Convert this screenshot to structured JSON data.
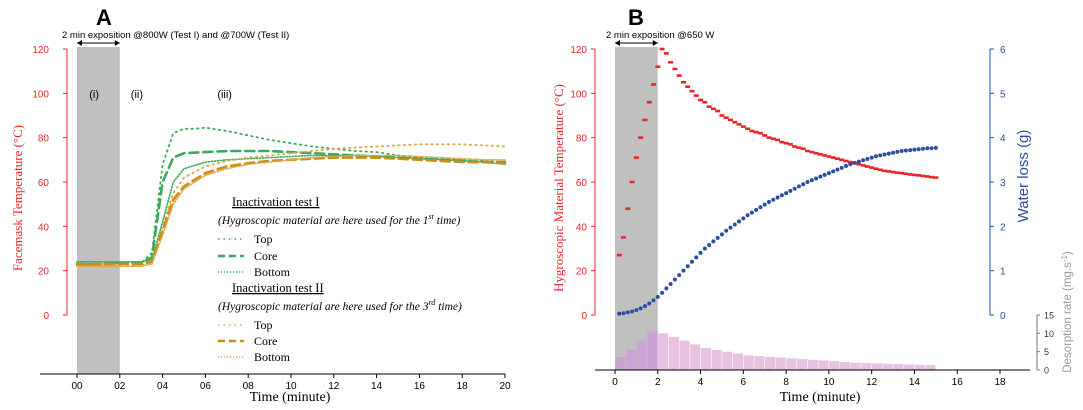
{
  "panels": {
    "a": {
      "letter": "A",
      "exposition_note": "2 min exposition @800W (Test I) and @700W (Test II)"
    },
    "b": {
      "letter": "B",
      "exposition_note": "2 min exposition @650 W"
    }
  },
  "colors": {
    "red": "#e8262a",
    "blue": "#2f4da0",
    "green": "#3aaa5e",
    "gold": "#c98f15",
    "gold_light": "#e0a64a",
    "shade": "#c0c0c0",
    "pink": "#e4b8dc",
    "purple": "#c9a0d6"
  },
  "chart_data": [
    {
      "type": "line",
      "xlabel": "Time (minute)",
      "ylabel": "Facemask Temperature (°C)",
      "xlim": [
        0,
        20
      ],
      "ylim": [
        0,
        120
      ],
      "x_ticks": [
        "00",
        "02",
        "04",
        "06",
        "08",
        "10",
        "12",
        "14",
        "16",
        "18",
        "20"
      ],
      "y_ticks": [
        "0",
        "20",
        "40",
        "60",
        "80",
        "100",
        "120"
      ],
      "shaded_region_x": [
        0,
        2
      ],
      "phase_labels": [
        {
          "text": "(i)",
          "x": 0.8
        },
        {
          "text": "(ii)",
          "x": 2.8
        },
        {
          "text": "(iii)",
          "x": 6.9
        }
      ],
      "legend": {
        "group1_title": "Inactivation test I",
        "group1_note": "(Hygroscopic material are here used for the 1",
        "group1_sup": "st",
        "group1_note_end": " time)",
        "group2_title": "Inactivation test II",
        "group2_note": "(Hygroscopic material are here used for the 3",
        "group2_sup": "rd",
        "group2_note_end": " time)",
        "labels": [
          "Top",
          "Core",
          "Bottom",
          "Top",
          "Core",
          "Bottom"
        ]
      },
      "series": [
        {
          "name": "Top",
          "group": "Inactivation test I",
          "color": "#3aaa5e",
          "style": "dotted",
          "x": [
            0,
            1,
            2,
            3,
            3.5,
            4,
            4.5,
            5,
            5.5,
            6,
            7,
            8,
            9,
            10,
            11,
            12,
            13,
            14,
            15,
            16,
            17,
            18,
            19,
            20
          ],
          "y": [
            23,
            23,
            23.5,
            23.5,
            28,
            68,
            82,
            84,
            84,
            84.5,
            83,
            81,
            79,
            77.5,
            76,
            75,
            74,
            73.5,
            72,
            71,
            70.5,
            70,
            69.5,
            69
          ]
        },
        {
          "name": "Core",
          "group": "Inactivation test I",
          "color": "#3aaa5e",
          "style": "dashed",
          "x": [
            0,
            1,
            2,
            3,
            3.5,
            4,
            4.5,
            5,
            6,
            7,
            8,
            9,
            10,
            11,
            12,
            13,
            14,
            15,
            16,
            17,
            18,
            19,
            20
          ],
          "y": [
            23,
            23,
            23.5,
            23.5,
            26,
            60,
            71,
            73,
            73.5,
            74,
            74,
            74,
            73.5,
            73,
            72.5,
            72,
            71.5,
            71,
            70.5,
            70,
            69.5,
            69,
            69
          ]
        },
        {
          "name": "Bottom",
          "group": "Inactivation test I",
          "color": "#3aaa5e",
          "style": "dotted-dense",
          "x": [
            0,
            1,
            2,
            3,
            3.5,
            4,
            4.5,
            5,
            6,
            7,
            8,
            9,
            10,
            11,
            12,
            13,
            14,
            15,
            16,
            17,
            18,
            19,
            20
          ],
          "y": [
            24,
            24,
            24,
            24,
            25,
            42,
            60,
            66,
            69,
            70,
            70.5,
            71,
            71.5,
            72,
            72,
            72,
            71.5,
            71,
            70.5,
            70,
            69.5,
            69,
            68
          ]
        },
        {
          "name": "Top",
          "group": "Inactivation test II",
          "color": "#e0a64a",
          "style": "dotted",
          "x": [
            0,
            1,
            2,
            3,
            3.5,
            4,
            4.5,
            5,
            6,
            7,
            8,
            9,
            10,
            11,
            12,
            13,
            14,
            15,
            16,
            17,
            18,
            19,
            20
          ],
          "y": [
            22,
            22,
            22,
            22,
            24,
            40,
            55,
            62,
            67,
            69.5,
            71,
            72,
            73,
            74,
            75,
            75.5,
            76,
            76.5,
            77,
            77,
            77,
            76.5,
            76
          ]
        },
        {
          "name": "Core",
          "group": "Inactivation test II",
          "color": "#c98f15",
          "style": "dashed",
          "x": [
            0,
            1,
            2,
            3,
            3.5,
            4,
            4.5,
            5,
            6,
            7,
            8,
            9,
            10,
            11,
            12,
            13,
            14,
            15,
            16,
            17,
            18,
            19,
            20
          ],
          "y": [
            23,
            23,
            23,
            23,
            24,
            38,
            52,
            58,
            64,
            67,
            68.5,
            69.5,
            70,
            70.5,
            71,
            71,
            71,
            70.5,
            70,
            69.5,
            69,
            69,
            68.5
          ]
        },
        {
          "name": "Bottom",
          "group": "Inactivation test II",
          "color": "#e0a64a",
          "style": "dotted-dense",
          "x": [
            0,
            1,
            2,
            3,
            3.5,
            4,
            4.5,
            5,
            6,
            7,
            8,
            9,
            10,
            11,
            12,
            13,
            14,
            15,
            16,
            17,
            18,
            19,
            20
          ],
          "y": [
            22,
            22,
            22,
            22,
            23,
            36,
            50,
            57,
            63,
            66,
            68,
            69,
            70,
            71,
            71.5,
            72,
            72,
            72,
            71.5,
            71,
            70.5,
            70,
            70
          ]
        }
      ]
    },
    {
      "type": "scatter",
      "xlabel": "Time (minute)",
      "ylabel": "Hygroscopic Material Temperature (°C)",
      "y2label": "Water loss (g)",
      "y3label": "Desorption rate (mg.s",
      "y3label_sup": "-1",
      "y3label_end": ")",
      "xlim": [
        0,
        18
      ],
      "ylim": [
        0,
        120
      ],
      "y2lim": [
        0,
        6
      ],
      "y3lim": [
        0,
        15
      ],
      "x_ticks": [
        "0",
        "2",
        "4",
        "6",
        "8",
        "10",
        "12",
        "14",
        "16",
        "18"
      ],
      "y_ticks": [
        "0",
        "20",
        "40",
        "60",
        "80",
        "100",
        "120"
      ],
      "y2_ticks": [
        "0",
        "1",
        "2",
        "3",
        "4",
        "5",
        "6"
      ],
      "y3_ticks": [
        "0",
        "5",
        "10",
        "15"
      ],
      "shaded_region_x": [
        0,
        2
      ],
      "temperature": {
        "x": [
          0.2,
          0.4,
          0.6,
          0.8,
          1.0,
          1.2,
          1.4,
          1.6,
          1.8,
          2.0,
          2.2,
          2.4,
          2.6,
          2.8,
          3.0,
          3.2,
          3.4,
          3.6,
          3.8,
          4.0,
          4.2,
          4.4,
          4.6,
          4.8,
          5.0,
          5.2,
          5.4,
          5.6,
          5.8,
          6.0,
          6.2,
          6.4,
          6.6,
          6.8,
          7.0,
          7.2,
          7.4,
          7.6,
          7.8,
          8.0,
          8.2,
          8.4,
          8.6,
          8.8,
          9.0,
          9.2,
          9.4,
          9.6,
          9.8,
          10.0,
          10.2,
          10.4,
          10.6,
          10.8,
          11.0,
          11.2,
          11.4,
          11.6,
          11.8,
          12.0,
          12.2,
          12.4,
          12.6,
          12.8,
          13.0,
          13.2,
          13.4,
          13.6,
          13.8,
          14.0,
          14.2,
          14.4,
          14.6,
          14.8,
          15.0
        ],
        "y": [
          27,
          35,
          48,
          60,
          71,
          80,
          88,
          96,
          104,
          112,
          120,
          118,
          114,
          111,
          108,
          105,
          103,
          101,
          99,
          97,
          96,
          94,
          93,
          92,
          90,
          89,
          88,
          87,
          86,
          85,
          84,
          83,
          82.5,
          82,
          81,
          80,
          79.5,
          79,
          78,
          77.5,
          77,
          76,
          75.5,
          75,
          74,
          73.5,
          73,
          72.5,
          72,
          71.5,
          71,
          70.5,
          70,
          69.5,
          69,
          68.5,
          68,
          67.5,
          67,
          66.5,
          66,
          65.5,
          65,
          64.8,
          64.5,
          64.2,
          64,
          63.7,
          63.4,
          63.2,
          63,
          62.7,
          62.5,
          62.2,
          62
        ]
      },
      "water_loss": {
        "x": [
          0.2,
          0.4,
          0.6,
          0.8,
          1.0,
          1.2,
          1.4,
          1.6,
          1.8,
          2.0,
          2.2,
          2.4,
          2.6,
          2.8,
          3.0,
          3.2,
          3.4,
          3.6,
          3.8,
          4.0,
          4.2,
          4.4,
          4.6,
          4.8,
          5.0,
          5.2,
          5.4,
          5.6,
          5.8,
          6.0,
          6.2,
          6.4,
          6.6,
          6.8,
          7.0,
          7.2,
          7.4,
          7.6,
          7.8,
          8.0,
          8.2,
          8.4,
          8.6,
          8.8,
          9.0,
          9.2,
          9.4,
          9.6,
          9.8,
          10.0,
          10.2,
          10.4,
          10.6,
          10.8,
          11.0,
          11.2,
          11.4,
          11.6,
          11.8,
          12.0,
          12.2,
          12.4,
          12.6,
          12.8,
          13.0,
          13.2,
          13.4,
          13.6,
          13.8,
          14.0,
          14.2,
          14.4,
          14.6,
          14.8,
          15.0
        ],
        "y": [
          0.03,
          0.04,
          0.06,
          0.08,
          0.11,
          0.15,
          0.2,
          0.26,
          0.33,
          0.41,
          0.5,
          0.6,
          0.7,
          0.8,
          0.9,
          1.0,
          1.1,
          1.2,
          1.3,
          1.4,
          1.5,
          1.58,
          1.66,
          1.74,
          1.82,
          1.9,
          1.97,
          2.04,
          2.11,
          2.18,
          2.25,
          2.31,
          2.37,
          2.43,
          2.49,
          2.55,
          2.6,
          2.65,
          2.7,
          2.75,
          2.8,
          2.85,
          2.9,
          2.95,
          3.0,
          3.04,
          3.08,
          3.12,
          3.16,
          3.2,
          3.24,
          3.28,
          3.32,
          3.36,
          3.4,
          3.43,
          3.46,
          3.49,
          3.52,
          3.55,
          3.58,
          3.6,
          3.62,
          3.64,
          3.66,
          3.68,
          3.7,
          3.71,
          3.72,
          3.73,
          3.74,
          3.75,
          3.76,
          3.76,
          3.77
        ]
      },
      "desorption": {
        "x": [
          0.25,
          0.75,
          1.25,
          1.75,
          2.25,
          2.75,
          3.25,
          3.75,
          4.25,
          4.75,
          5.25,
          5.75,
          6.25,
          6.75,
          7.25,
          7.75,
          8.25,
          8.75,
          9.25,
          9.75,
          10.25,
          10.75,
          11.25,
          11.75,
          12.25,
          12.75,
          13.25,
          13.75,
          14.25,
          14.75
        ],
        "y": [
          3.5,
          5.5,
          8,
          10.5,
          10,
          9,
          8,
          7,
          6,
          5.5,
          5,
          4.5,
          4,
          3.8,
          3.6,
          3.4,
          3.2,
          3.0,
          2.8,
          2.6,
          2.4,
          2.2,
          2.0,
          1.9,
          1.8,
          1.7,
          1.6,
          1.5,
          1.4,
          1.3
        ]
      }
    }
  ]
}
